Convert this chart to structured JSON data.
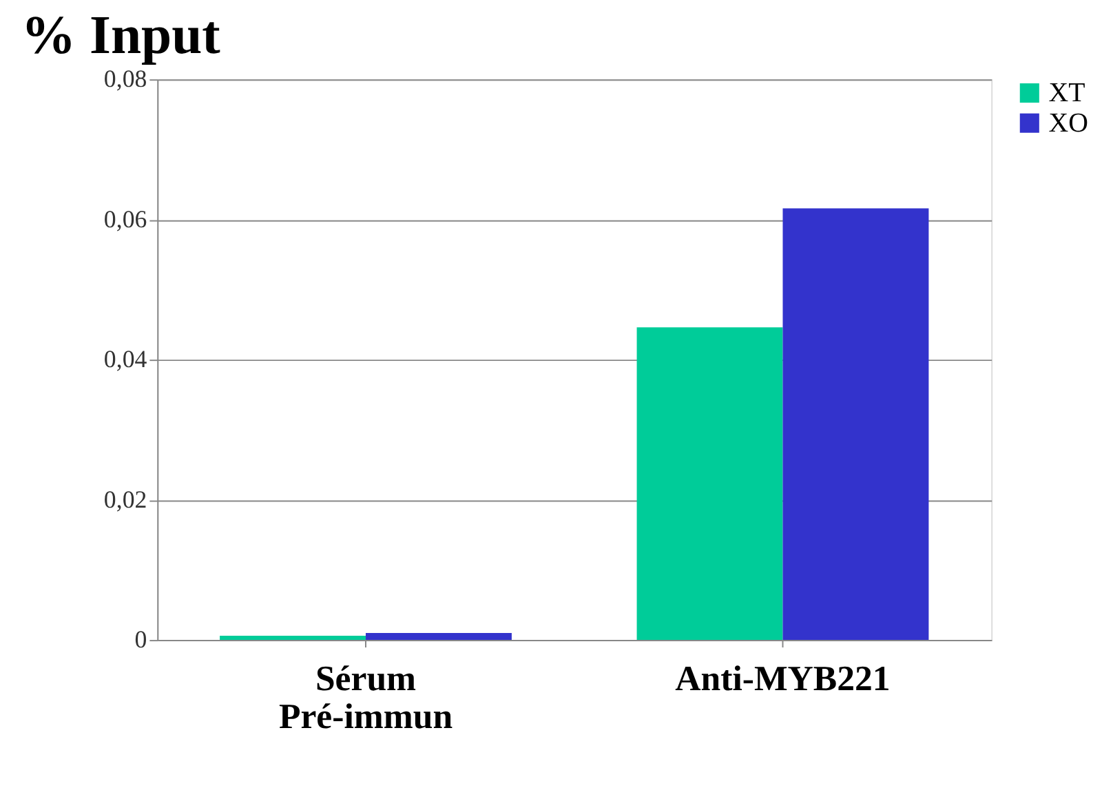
{
  "chart_data": {
    "type": "bar",
    "title": "% Input",
    "categories": [
      "Sérum Pré-immun",
      "Anti-MYB221"
    ],
    "series": [
      {
        "name": "XT",
        "color": "#00cc99",
        "values": [
          0.0006,
          0.0446
        ]
      },
      {
        "name": "XO",
        "color": "#3333cc",
        "values": [
          0.001,
          0.0616
        ]
      }
    ],
    "ylim": [
      0,
      0.08
    ],
    "yticks": [
      {
        "value": 0,
        "label": "0"
      },
      {
        "value": 0.02,
        "label": "0,02"
      },
      {
        "value": 0.04,
        "label": "0,04"
      },
      {
        "value": 0.06,
        "label": "0,06"
      },
      {
        "value": 0.08,
        "label": "0,08"
      }
    ],
    "grid": "y",
    "legend": "right"
  }
}
